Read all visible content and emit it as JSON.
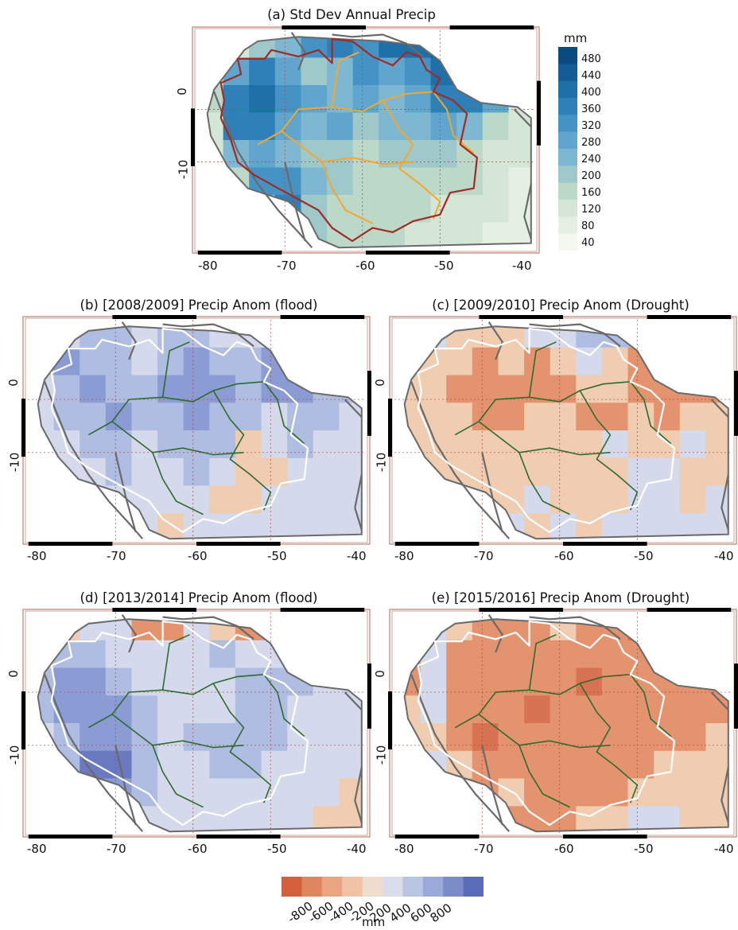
{
  "panels": [
    {
      "id": "a",
      "title": "(a) Std Dev Annual Precip",
      "kind": "std"
    },
    {
      "id": "b",
      "title": "(b) [2008/2009] Precip Anom (flood)",
      "kind": "flood",
      "cells": [
        [
          2,
          1,
          2,
          2,
          1,
          2,
          2,
          1,
          1,
          1,
          2,
          2,
          2
        ],
        [
          2,
          3,
          2,
          2,
          1,
          2,
          3,
          2,
          2,
          3,
          2,
          3,
          2
        ],
        [
          1,
          2,
          3,
          2,
          2,
          3,
          3,
          3,
          2,
          3,
          3,
          2,
          2
        ],
        [
          1,
          2,
          2,
          3,
          2,
          2,
          3,
          2,
          2,
          1,
          2,
          2,
          1
        ],
        [
          1,
          1,
          2,
          2,
          1,
          2,
          2,
          2,
          -1,
          1,
          2,
          1,
          1
        ],
        [
          -1,
          1,
          1,
          2,
          1,
          1,
          2,
          1,
          -1,
          -1,
          1,
          1,
          1
        ],
        [
          -1,
          -1,
          1,
          1,
          1,
          1,
          1,
          -1,
          -1,
          1,
          1,
          1,
          1
        ],
        [
          -1,
          -1,
          -1,
          1,
          1,
          -1,
          1,
          1,
          1,
          1,
          1,
          1,
          1
        ]
      ]
    },
    {
      "id": "c",
      "title": "(c) [2009/2010] Precip Anom (Drought)",
      "kind": "drought",
      "cells": [
        [
          -1,
          1,
          -1,
          -1,
          -1,
          1,
          1,
          2,
          2,
          2,
          1,
          1,
          -1
        ],
        [
          -1,
          -1,
          -1,
          -2,
          -1,
          -2,
          -1,
          1,
          -1,
          -2,
          -2,
          -1,
          -1
        ],
        [
          -1,
          -1,
          -2,
          -2,
          -2,
          -2,
          -2,
          -1,
          -1,
          -2,
          -2,
          -2,
          -2
        ],
        [
          -1,
          -1,
          -1,
          -2,
          -2,
          -1,
          -1,
          -2,
          -2,
          -1,
          -2,
          -1,
          -1
        ],
        [
          -1,
          -1,
          -1,
          -1,
          -1,
          -1,
          -1,
          -1,
          1,
          -1,
          -1,
          1,
          -1
        ],
        [
          -1,
          -1,
          -1,
          -1,
          -1,
          -1,
          -1,
          -1,
          -1,
          1,
          1,
          -1,
          -1
        ],
        [
          -1,
          1,
          -1,
          -1,
          -1,
          1,
          -1,
          -1,
          -1,
          1,
          1,
          -1,
          1
        ],
        [
          -1,
          -1,
          -1,
          1,
          1,
          -1,
          1,
          -1,
          1,
          1,
          1,
          1,
          1
        ]
      ]
    },
    {
      "id": "d",
      "title": "(d) [2013/2014] Precip Anom (flood)",
      "kind": "flood",
      "cells": [
        [
          -1,
          -1,
          1,
          1,
          -2,
          -2,
          1,
          -1,
          -2,
          -2,
          1,
          1,
          1
        ],
        [
          1,
          2,
          2,
          1,
          1,
          1,
          1,
          2,
          1,
          1,
          2,
          1,
          1
        ],
        [
          2,
          3,
          3,
          2,
          1,
          1,
          1,
          1,
          2,
          2,
          2,
          1,
          1
        ],
        [
          2,
          3,
          3,
          3,
          2,
          1,
          1,
          1,
          2,
          2,
          1,
          1,
          1
        ],
        [
          1,
          2,
          3,
          3,
          2,
          1,
          2,
          2,
          2,
          2,
          1,
          1,
          1
        ],
        [
          1,
          2,
          4,
          4,
          2,
          1,
          1,
          2,
          2,
          1,
          1,
          1,
          1
        ],
        [
          1,
          2,
          3,
          3,
          2,
          1,
          1,
          1,
          1,
          1,
          1,
          1,
          -1
        ],
        [
          1,
          1,
          1,
          1,
          1,
          1,
          1,
          1,
          1,
          1,
          1,
          -1,
          -1
        ]
      ]
    },
    {
      "id": "e",
      "title": "(e) [2015/2016] Precip Anom (Drought)",
      "kind": "drought",
      "cells": [
        [
          -2,
          1,
          -1,
          -2,
          -2,
          -2,
          -1,
          -2,
          -2,
          -3,
          -2,
          -1,
          -1
        ],
        [
          -2,
          1,
          -2,
          -2,
          -2,
          -2,
          -2,
          -2,
          -2,
          -2,
          -2,
          -1,
          -1
        ],
        [
          -2,
          1,
          -2,
          -2,
          -2,
          -2,
          -2,
          -3,
          -2,
          -2,
          -2,
          -2,
          -2
        ],
        [
          -1,
          1,
          -2,
          -2,
          -2,
          -3,
          -2,
          -2,
          -2,
          -2,
          -2,
          -2,
          -2
        ],
        [
          -1,
          -1,
          -2,
          -3,
          -2,
          -2,
          -2,
          -2,
          -2,
          -2,
          -2,
          -2,
          -1
        ],
        [
          -1,
          1,
          -1,
          -2,
          -2,
          -2,
          -2,
          -2,
          -2,
          -2,
          -1,
          -1,
          -1
        ],
        [
          -1,
          -1,
          -2,
          -2,
          -1,
          -2,
          -2,
          -2,
          -2,
          -1,
          -1,
          -1,
          -1
        ],
        [
          -1,
          -1,
          -1,
          -2,
          -2,
          -2,
          -2,
          -1,
          -1,
          1,
          1,
          -1,
          -1
        ]
      ]
    }
  ],
  "x_ticks": [
    "-80",
    "-70",
    "-60",
    "-50",
    "-40"
  ],
  "y_ticks": [
    "0",
    "-10"
  ],
  "std_colorbar": {
    "unit": "mm",
    "labels": [
      "480",
      "440",
      "400",
      "360",
      "320",
      "280",
      "240",
      "200",
      "160",
      "120",
      "80",
      "40"
    ],
    "colors": [
      "#0b4a7e",
      "#135c94",
      "#1f6fa8",
      "#2f80b8",
      "#4593c4",
      "#5fa5cd",
      "#7eb7d2",
      "#9ec8c9",
      "#bcd8c8",
      "#d4e6d6",
      "#e6f0e2",
      "#f4f8ef"
    ],
    "cells": [
      [
        1,
        2,
        4,
        5,
        7,
        8,
        7,
        9,
        9,
        10,
        9,
        6,
        4
      ],
      [
        2,
        6,
        8,
        6,
        4,
        5,
        7,
        6,
        7,
        9,
        10,
        9,
        8
      ],
      [
        3,
        8,
        9,
        7,
        6,
        5,
        6,
        5,
        6,
        8,
        8,
        6,
        2
      ],
      [
        2,
        8,
        8,
        6,
        5,
        6,
        4,
        5,
        5,
        6,
        5,
        3,
        2
      ],
      [
        2,
        5,
        6,
        5,
        4,
        4,
        3,
        4,
        4,
        4,
        3,
        2,
        2
      ],
      [
        1,
        3,
        7,
        7,
        5,
        4,
        3,
        3,
        3,
        3,
        3,
        2,
        1
      ],
      [
        1,
        2,
        5,
        8,
        4,
        3,
        3,
        3,
        3,
        2,
        2,
        2,
        1
      ],
      [
        1,
        2,
        3,
        6,
        4,
        3,
        3,
        3,
        2,
        2,
        2,
        1,
        1
      ]
    ]
  },
  "anom_colorbar": {
    "unit": "mm",
    "labels": [
      "-800",
      "-600",
      "-400",
      "-200",
      "200",
      "400",
      "600",
      "800"
    ],
    "colors": [
      "#d2603e",
      "#df8661",
      "#e9a683",
      "#f2c2a4",
      "#eedccd",
      "#d9dcea",
      "#b9c6e2",
      "#9aa9d7",
      "#7b8cc8",
      "#5b6cb7"
    ]
  },
  "anom_class_colors": {
    "-4": "#c64e35",
    "-3": "#d77252",
    "-2": "#e4936f",
    "-1": "#f0ccb0",
    "1": "#d4d9ec",
    "2": "#b0bde2",
    "3": "#8b9bd3",
    "4": "#6a79c0"
  },
  "line_colors": {
    "frame": "#b06a5a",
    "coast": "#6a6a6a",
    "basin_std": "#9e2b25",
    "states_std": "#f0a830",
    "basin_anom": "#ffffff",
    "states_anom": "#2f6b2f",
    "grid": "#b0413a"
  }
}
